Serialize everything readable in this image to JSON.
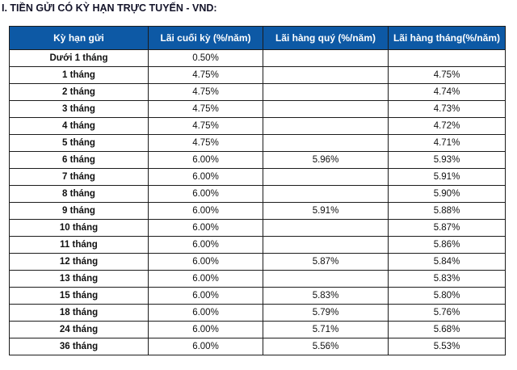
{
  "title": "I. TIỀN GỬI CÓ KỲ HẠN TRỰC TUYẾN - VND:",
  "colors": {
    "header_bg": "#0d59a5",
    "header_text": "#ffffff",
    "grid_border": "#1c1c1c",
    "row_bg": "#ffffff",
    "title_text": "#14142a"
  },
  "table": {
    "headers": [
      "Kỳ hạn gửi",
      "Lãi cuối kỳ (%/năm)",
      "Lãi hàng quý (%/năm)",
      "Lãi hàng tháng(%/năm)"
    ],
    "rows": [
      {
        "term": "Dưới 1 tháng",
        "end_of_term": "0.50%",
        "quarterly": "",
        "monthly": ""
      },
      {
        "term": "1 tháng",
        "end_of_term": "4.75%",
        "quarterly": "",
        "monthly": "4.75%"
      },
      {
        "term": "2 tháng",
        "end_of_term": "4.75%",
        "quarterly": "",
        "monthly": "4.74%"
      },
      {
        "term": "3 tháng",
        "end_of_term": "4.75%",
        "quarterly": "",
        "monthly": "4.73%"
      },
      {
        "term": "4 tháng",
        "end_of_term": "4.75%",
        "quarterly": "",
        "monthly": "4.72%"
      },
      {
        "term": "5 tháng",
        "end_of_term": "4.75%",
        "quarterly": "",
        "monthly": "4.71%"
      },
      {
        "term": "6 tháng",
        "end_of_term": "6.00%",
        "quarterly": "5.96%",
        "monthly": "5.93%"
      },
      {
        "term": "7 tháng",
        "end_of_term": "6.00%",
        "quarterly": "",
        "monthly": "5.91%"
      },
      {
        "term": "8 tháng",
        "end_of_term": "6.00%",
        "quarterly": "",
        "monthly": "5.90%"
      },
      {
        "term": "9 tháng",
        "end_of_term": "6.00%",
        "quarterly": "5.91%",
        "monthly": "5.88%"
      },
      {
        "term": "10 tháng",
        "end_of_term": "6.00%",
        "quarterly": "",
        "monthly": "5.87%"
      },
      {
        "term": "11 tháng",
        "end_of_term": "6.00%",
        "quarterly": "",
        "monthly": "5.86%"
      },
      {
        "term": "12 tháng",
        "end_of_term": "6.00%",
        "quarterly": "5.87%",
        "monthly": "5.84%"
      },
      {
        "term": "13 tháng",
        "end_of_term": "6.00%",
        "quarterly": "",
        "monthly": "5.83%"
      },
      {
        "term": "15 tháng",
        "end_of_term": "6.00%",
        "quarterly": "5.83%",
        "monthly": "5.80%"
      },
      {
        "term": "18 tháng",
        "end_of_term": "6.00%",
        "quarterly": "5.79%",
        "monthly": "5.76%"
      },
      {
        "term": "24 tháng",
        "end_of_term": "6.00%",
        "quarterly": "5.71%",
        "monthly": "5.68%"
      },
      {
        "term": "36 tháng",
        "end_of_term": "6.00%",
        "quarterly": "5.56%",
        "monthly": "5.53%"
      }
    ]
  }
}
